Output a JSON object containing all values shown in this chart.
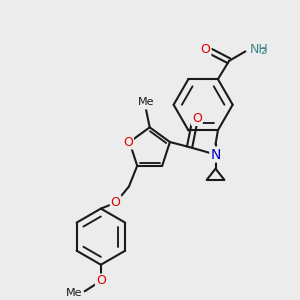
{
  "bg_color": "#ececec",
  "atom_colors": {
    "O": "#e00000",
    "N": "#0000d0",
    "C": "#1a1a1a",
    "H": "#3a8888"
  },
  "bond_color": "#1a1a1a",
  "bond_width": 1.5,
  "fig_bg": "#ececec",
  "xlim": [
    0,
    10
  ],
  "ylim": [
    0,
    10
  ]
}
